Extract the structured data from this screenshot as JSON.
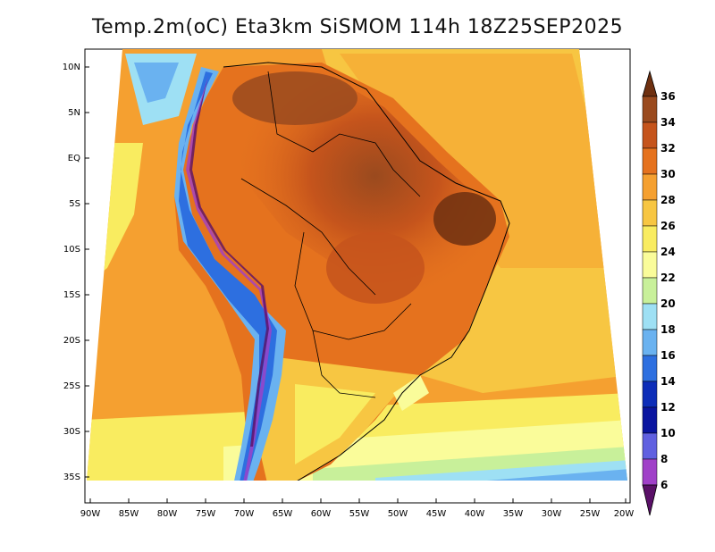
{
  "title": "Temp.2m(oC) Eta3km SiSMOM 114h 18Z25SEP2025",
  "axes": {
    "lat_labels": [
      "10N",
      "5N",
      "EQ",
      "5S",
      "10S",
      "15S",
      "20S",
      "25S",
      "30S",
      "35S"
    ],
    "lon_labels": [
      "90W",
      "85W",
      "80W",
      "75W",
      "70W",
      "65W",
      "60W",
      "55W",
      "50W",
      "45W",
      "40W",
      "35W",
      "30W",
      "25W",
      "20W"
    ]
  },
  "colorbar": {
    "labels": [
      "36",
      "34",
      "32",
      "30",
      "28",
      "26",
      "24",
      "22",
      "20",
      "18",
      "16",
      "14",
      "12",
      "10",
      "8",
      "6"
    ],
    "colors": [
      "#6e3010",
      "#9a4a1e",
      "#c5541c",
      "#e5721e",
      "#f5a030",
      "#f7c642",
      "#f9ec60",
      "#fafc9a",
      "#c8f09a",
      "#9ee0f4",
      "#6ab2f0",
      "#2d6fe0",
      "#0d2db8",
      "#0a15a0",
      "#6060e0",
      "#a040c8",
      "#5a1068"
    ]
  }
}
